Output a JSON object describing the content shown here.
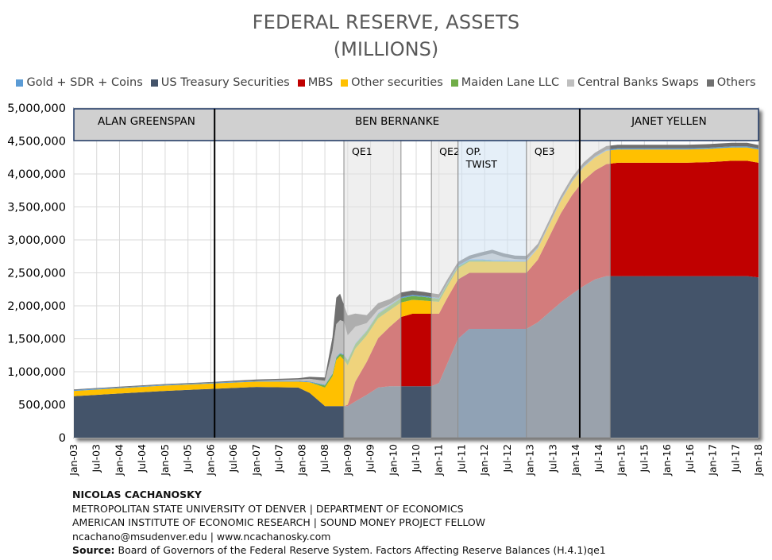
{
  "colors": {
    "gold": "#5b9bd5",
    "treasury": "#44546a",
    "mbs": "#c00000",
    "other": "#ffc000",
    "maiden": "#70ad47",
    "swaps": "#bfbfbf",
    "others": "#707070"
  },
  "chart_data": {
    "type": "area",
    "title": "FEDERAL RESERVE, ASSETS",
    "subtitle": "(MILLIONS)",
    "ylim": [
      0,
      5000000
    ],
    "yticks": [
      0,
      500000,
      1000000,
      1500000,
      2000000,
      2500000,
      3000000,
      3500000,
      4000000,
      4500000,
      5000000
    ],
    "ytick_labels": [
      "0",
      "500,000",
      "1,000,000",
      "1,500,000",
      "2,000,000",
      "2,500,000",
      "3,000,000",
      "3,500,000",
      "4,000,000",
      "4,500,000",
      "5,000,000"
    ],
    "xrange": [
      "2003-01",
      "2018-01"
    ],
    "xtick_labels": [
      "Jan-03",
      "Jul-03",
      "Jan-04",
      "Jul-04",
      "Jan-05",
      "Jul-05",
      "Jan-06",
      "Jul-06",
      "Jan-07",
      "Jul-07",
      "Jan-08",
      "Jul-08",
      "Jan-09",
      "Jul-09",
      "Jan-10",
      "Jul-10",
      "Jan-11",
      "Jul-11",
      "Jan-12",
      "Jul-12",
      "Jan-13",
      "Jul-13",
      "Jan-14",
      "Jul-14",
      "Jan-15",
      "Jul-15",
      "Jan-16",
      "Jul-16",
      "Jan-17",
      "Jul-17",
      "Jan-18"
    ],
    "x": [
      "2003-01",
      "2004-01",
      "2005-01",
      "2006-01",
      "2007-01",
      "2007-12",
      "2008-03",
      "2008-07",
      "2008-09",
      "2008-10",
      "2008-11",
      "2008-12",
      "2009-01",
      "2009-03",
      "2009-06",
      "2009-09",
      "2009-12",
      "2010-03",
      "2010-06",
      "2010-09",
      "2010-11",
      "2011-01",
      "2011-03",
      "2011-06",
      "2011-09",
      "2011-12",
      "2012-03",
      "2012-06",
      "2012-09",
      "2012-12",
      "2013-03",
      "2013-06",
      "2013-09",
      "2013-12",
      "2014-03",
      "2014-06",
      "2014-09",
      "2014-12",
      "2015-06",
      "2015-12",
      "2016-06",
      "2016-12",
      "2017-06",
      "2017-10",
      "2018-01"
    ],
    "series": [
      {
        "name": "Gold + SDR + Coins",
        "color_key": "gold",
        "values": [
          13000,
          13000,
          13000,
          13000,
          13000,
          13000,
          13000,
          13000,
          13000,
          13000,
          13000,
          13000,
          13000,
          13000,
          13000,
          16000,
          16000,
          16000,
          16000,
          16000,
          16000,
          16000,
          16000,
          16000,
          16000,
          16000,
          16000,
          16000,
          16000,
          16000,
          16000,
          16000,
          16000,
          16000,
          16000,
          16000,
          16000,
          16000,
          16000,
          16000,
          16000,
          16000,
          16000,
          16000,
          16000
        ]
      },
      {
        "name": "US Treasury Securities",
        "color_key": "treasury",
        "values": [
          630000,
          670000,
          710000,
          740000,
          770000,
          760000,
          680000,
          480000,
          480000,
          480000,
          480000,
          480000,
          480000,
          550000,
          650000,
          760000,
          780000,
          780000,
          780000,
          780000,
          780000,
          830000,
          1100000,
          1500000,
          1650000,
          1650000,
          1650000,
          1650000,
          1650000,
          1650000,
          1750000,
          1900000,
          2050000,
          2180000,
          2300000,
          2400000,
          2450000,
          2450000,
          2450000,
          2450000,
          2450000,
          2450000,
          2450000,
          2450000,
          2430000
        ]
      },
      {
        "name": "MBS",
        "color_key": "mbs",
        "values": [
          0,
          0,
          0,
          0,
          0,
          0,
          0,
          0,
          0,
          0,
          0,
          0,
          20000,
          300000,
          500000,
          750000,
          900000,
          1050000,
          1100000,
          1100000,
          1100000,
          1050000,
          1000000,
          900000,
          850000,
          850000,
          850000,
          850000,
          850000,
          850000,
          950000,
          1150000,
          1350000,
          1500000,
          1600000,
          1650000,
          1700000,
          1720000,
          1720000,
          1720000,
          1720000,
          1730000,
          1750000,
          1750000,
          1740000
        ]
      },
      {
        "name": "Other securities",
        "color_key": "other",
        "values": [
          80000,
          80000,
          80000,
          80000,
          80000,
          90000,
          160000,
          280000,
          450000,
          700000,
          760000,
          700000,
          600000,
          500000,
          400000,
          300000,
          250000,
          220000,
          210000,
          200000,
          190000,
          180000,
          170000,
          170000,
          170000,
          170000,
          170000,
          170000,
          170000,
          170000,
          170000,
          180000,
          190000,
          200000,
          200000,
          200000,
          200000,
          200000,
          200000,
          200000,
          200000,
          200000,
          200000,
          200000,
          200000
        ]
      },
      {
        "name": "Maiden Lane LLC",
        "color_key": "maiden",
        "values": [
          0,
          0,
          0,
          0,
          0,
          0,
          0,
          30000,
          30000,
          30000,
          30000,
          70000,
          70000,
          70000,
          65000,
          65000,
          65000,
          65000,
          60000,
          55000,
          50000,
          45000,
          40000,
          25000,
          20000,
          20000,
          10000,
          5000,
          2000,
          2000,
          2000,
          2000,
          2000,
          2000,
          2000,
          2000,
          2000,
          2000,
          2000,
          2000,
          2000,
          2000,
          2000,
          2000,
          2000
        ]
      },
      {
        "name": "Central Banks Swaps",
        "color_key": "swaps",
        "values": [
          0,
          0,
          0,
          0,
          0,
          20000,
          40000,
          60000,
          350000,
          500000,
          500000,
          500000,
          370000,
          250000,
          110000,
          50000,
          10000,
          0,
          0,
          0,
          0,
          0,
          0,
          0,
          0,
          50000,
          100000,
          50000,
          20000,
          15000,
          0,
          0,
          0,
          0,
          0,
          0,
          0,
          0,
          0,
          0,
          0,
          0,
          0,
          0,
          0
        ]
      },
      {
        "name": "Others",
        "color_key": "others",
        "values": [
          10000,
          10000,
          10000,
          10000,
          20000,
          20000,
          30000,
          50000,
          200000,
          400000,
          400000,
          250000,
          300000,
          200000,
          120000,
          100000,
          80000,
          70000,
          65000,
          60000,
          55000,
          55000,
          55000,
          55000,
          55000,
          55000,
          55000,
          55000,
          55000,
          55000,
          55000,
          55000,
          55000,
          55000,
          55000,
          55000,
          55000,
          55000,
          55000,
          55000,
          55000,
          55000,
          55000,
          55000,
          50000
        ]
      }
    ],
    "eras": [
      {
        "label": "ALAN GREENSPAN",
        "start": "2003-01",
        "end": "2006-02"
      },
      {
        "label": "BEN BERNANKE",
        "start": "2006-02",
        "end": "2014-02"
      },
      {
        "label": "JANET YELLEN",
        "start": "2014-02",
        "end": "2018-01"
      }
    ],
    "programs": [
      {
        "label": "QE1",
        "label2": "",
        "start": "2008-12",
        "end": "2010-03",
        "fill": "#e2e2e2"
      },
      {
        "label": "QE2",
        "label2": "",
        "start": "2010-11",
        "end": "2011-06",
        "fill": "#e2e2e2"
      },
      {
        "label": "OP.",
        "label2": "TWIST",
        "start": "2011-06",
        "end": "2012-12",
        "fill": "#cfe2f3"
      },
      {
        "label": "QE3",
        "label2": "",
        "start": "2012-12",
        "end": "2014-10",
        "fill": "#e2e2e2"
      }
    ]
  },
  "footer": {
    "author": "NICOLAS CACHANOSKY",
    "line1": "METROPOLITAN STATE UNIVERSITY OT DENVER | DEPARTMENT OF ECONOMICS",
    "line2": "AMERICAN INSTITUTE OF ECONOMIC RESEARCH | SOUND MONEY PROJECT FELLOW",
    "line3": "ncachano@msudenver.edu  |  www.ncachanosky.com",
    "source_label": "Source:",
    "source_text": " Board of Governors  of the Federal Reserve System. Factors Affecting Reserve Balances (H.4.1)qe1"
  }
}
